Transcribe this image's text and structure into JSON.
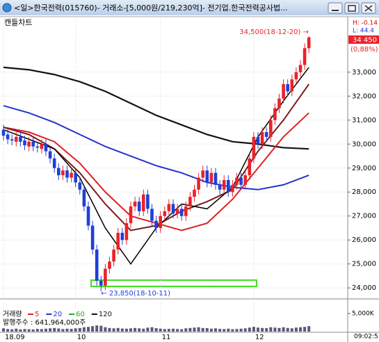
{
  "window": {
    "title": "<일>한국전력(015760)- 거래소-[5,000원/219,230억]- 전기업.한국전력공사법...",
    "status_time": "09:02:5"
  },
  "chart_data": [
    {
      "type": "candlestick",
      "title": "캔들차트",
      "categories": [
        "18.09",
        null,
        null,
        null,
        null,
        null,
        null,
        null,
        null,
        null,
        null,
        null,
        null,
        null,
        null,
        null,
        null,
        "10",
        null,
        null,
        null,
        null,
        null,
        null,
        null,
        null,
        null,
        null,
        null,
        null,
        null,
        null,
        null,
        null,
        null,
        null,
        null,
        "11",
        null,
        null,
        null,
        null,
        null,
        null,
        null,
        null,
        null,
        null,
        null,
        null,
        null,
        null,
        null,
        null,
        null,
        null,
        null,
        null,
        null,
        "12",
        null,
        null,
        null,
        null,
        null,
        null,
        null,
        null,
        null,
        null,
        null,
        null,
        null
      ],
      "open": [
        30600,
        30400,
        30200,
        30100,
        30300,
        30150,
        29900,
        30100,
        29900,
        29800,
        30000,
        29700,
        29400,
        29000,
        28700,
        28900,
        28600,
        28800,
        28400,
        28100,
        27400,
        26600,
        25600,
        24300,
        24100,
        24800,
        25100,
        25600,
        26300,
        26000,
        26700,
        27400,
        27600,
        27200,
        27900,
        27300,
        26800,
        26500,
        27000,
        27200,
        27500,
        27100,
        27300,
        27000,
        27400,
        27800,
        28100,
        28600,
        28900,
        28400,
        28800,
        28300,
        28100,
        28500,
        28000,
        28300,
        28600,
        28300,
        28700,
        29400,
        30300,
        30000,
        30500,
        30300,
        31000,
        31500,
        31900,
        32500,
        32200,
        32700,
        33000,
        33300,
        34000
      ],
      "high": [
        30800,
        30600,
        30400,
        30500,
        30500,
        30350,
        30300,
        30300,
        30100,
        30200,
        30200,
        29900,
        29600,
        29200,
        29100,
        29100,
        29000,
        29000,
        28600,
        28300,
        27600,
        26800,
        25800,
        24500,
        25000,
        25300,
        25800,
        26500,
        26500,
        26900,
        27600,
        27800,
        27800,
        28100,
        28100,
        27500,
        27000,
        27200,
        27400,
        27700,
        27700,
        27500,
        27500,
        27600,
        28000,
        28300,
        28800,
        29100,
        29100,
        29000,
        29000,
        28500,
        28700,
        28700,
        28500,
        28800,
        28800,
        28900,
        29600,
        30500,
        30500,
        30700,
        30700,
        31200,
        31700,
        32100,
        32700,
        32700,
        32900,
        33200,
        33500,
        34200,
        34500
      ],
      "low": [
        30150,
        30000,
        29950,
        29900,
        29900,
        29750,
        29700,
        29700,
        29650,
        29600,
        29500,
        29200,
        28800,
        28500,
        28500,
        28400,
        28400,
        28200,
        27900,
        27200,
        26400,
        25400,
        24100,
        23850,
        23900,
        24600,
        24900,
        25400,
        25800,
        25800,
        26500,
        27200,
        27000,
        27000,
        27100,
        26600,
        26300,
        26300,
        26800,
        27000,
        26900,
        26900,
        26800,
        26800,
        27200,
        27600,
        27900,
        28400,
        28200,
        28200,
        28100,
        27900,
        27900,
        27800,
        27800,
        28100,
        28100,
        28100,
        28500,
        29200,
        29800,
        29800,
        30100,
        30100,
        30800,
        31300,
        31700,
        32000,
        32000,
        32500,
        32800,
        33100,
        33800
      ],
      "close": [
        30350,
        30200,
        30150,
        30300,
        30100,
        29950,
        30100,
        29900,
        29850,
        30000,
        29700,
        29400,
        29000,
        28700,
        28900,
        28600,
        28800,
        28400,
        28100,
        27400,
        26600,
        25600,
        24300,
        24100,
        24800,
        25100,
        25600,
        26300,
        26000,
        26700,
        27400,
        27600,
        27200,
        27900,
        27300,
        26800,
        26500,
        27000,
        27200,
        27500,
        27100,
        27300,
        27000,
        27400,
        27800,
        28100,
        28600,
        28900,
        28400,
        28800,
        28300,
        28100,
        28500,
        28000,
        28300,
        28600,
        28300,
        28700,
        29400,
        30300,
        30000,
        30500,
        30300,
        31000,
        31500,
        31900,
        32500,
        32200,
        32700,
        33000,
        33300,
        34000,
        34450
      ],
      "up_color": "#e8232a",
      "down_color": "#1f3fd8",
      "ylim": [
        23600,
        34850
      ],
      "yticks": [
        {
          "value": 24000,
          "label": "24,000"
        },
        {
          "value": 25000,
          "label": "25,000"
        },
        {
          "value": 26000,
          "label": "26,000"
        },
        {
          "value": 27000,
          "label": "27,000"
        },
        {
          "value": 28000,
          "label": "28,000"
        },
        {
          "value": 29000,
          "label": "29,000"
        },
        {
          "value": 30000,
          "label": "30,000"
        },
        {
          "value": 31000,
          "label": "31,000"
        },
        {
          "value": 32000,
          "label": "32,000"
        },
        {
          "value": 33000,
          "label": "33,000"
        }
      ],
      "grid": true,
      "series": [
        {
          "color": "#111111",
          "width": 2.2,
          "x": [
            0,
            6,
            12,
            18,
            24,
            30,
            36,
            42,
            48,
            54,
            60,
            66,
            72
          ],
          "values": [
            33200,
            33100,
            32900,
            32600,
            32200,
            31700,
            31200,
            30800,
            30400,
            30100,
            30000,
            29850,
            29800
          ]
        },
        {
          "color": "#2233cc",
          "width": 2,
          "x": [
            0,
            6,
            12,
            18,
            24,
            30,
            36,
            42,
            48,
            54,
            60,
            66,
            72
          ],
          "values": [
            31600,
            31300,
            30900,
            30400,
            29900,
            29500,
            29100,
            28800,
            28400,
            28200,
            28100,
            28300,
            28700
          ]
        },
        {
          "color": "#e02020",
          "width": 2,
          "x": [
            0,
            6,
            12,
            18,
            24,
            30,
            36,
            42,
            48,
            54,
            60,
            66,
            72
          ],
          "values": [
            30700,
            30500,
            30100,
            29200,
            28000,
            27000,
            26700,
            26400,
            26700,
            27700,
            29000,
            30300,
            31300
          ]
        },
        {
          "color": "#7a1a1a",
          "width": 2,
          "x": [
            0,
            6,
            12,
            18,
            24,
            30,
            36,
            42,
            48,
            54,
            60,
            66,
            72
          ],
          "values": [
            30700,
            30400,
            29800,
            28800,
            27500,
            26400,
            26600,
            27200,
            27600,
            28100,
            29700,
            31000,
            32500
          ]
        },
        {
          "color": "#000000",
          "width": 1.5,
          "x": [
            0,
            6,
            12,
            18,
            24,
            30,
            36,
            42,
            48,
            54,
            60,
            66,
            72
          ],
          "values": [
            30600,
            30200,
            29800,
            28600,
            26500,
            25000,
            26500,
            27500,
            27300,
            28200,
            30300,
            31800,
            33200
          ]
        }
      ],
      "annotations": [
        {
          "text": "34,500(18-12-20) →",
          "color": "#e8232a"
        },
        {
          "text": "← 23,850(18-10-11)",
          "color": "#1f3fd8"
        }
      ],
      "info": {
        "high": "H: -0.14",
        "low": "L: 44.4",
        "last": "34 450",
        "change": "(0,88%)"
      }
    },
    {
      "type": "bar",
      "title": "거래량",
      "legend": [
        {
          "name": "5",
          "color": "#e02020"
        },
        {
          "name": "20",
          "color": "#2233cc"
        },
        {
          "name": "60",
          "color": "#22aa22"
        },
        {
          "name": "120",
          "color": "#111111"
        }
      ],
      "note": "발행주수 : 641,964,000주",
      "color": "#5a5a7a",
      "values": [
        900,
        700,
        650,
        800,
        600,
        700,
        650,
        600,
        750,
        700,
        800,
        900,
        1000,
        850,
        700,
        800,
        750,
        900,
        1000,
        1200,
        1300,
        1500,
        1700,
        1600,
        1200,
        1000,
        900,
        1000,
        850,
        800,
        900,
        1000,
        900,
        800,
        1100,
        1200,
        950,
        800,
        700,
        750,
        800,
        700,
        650,
        900,
        1000,
        1100,
        1200,
        1000,
        950,
        800,
        900,
        750,
        700,
        800,
        650,
        700,
        800,
        900,
        1100,
        1300,
        1100,
        1000,
        950,
        1200,
        1100,
        1000,
        1200,
        1000,
        900,
        1100,
        1200,
        1300,
        1500
      ],
      "ylim": [
        0,
        7500
      ],
      "yticks": [
        {
          "value": 5000,
          "label": "5,000K"
        }
      ]
    }
  ]
}
